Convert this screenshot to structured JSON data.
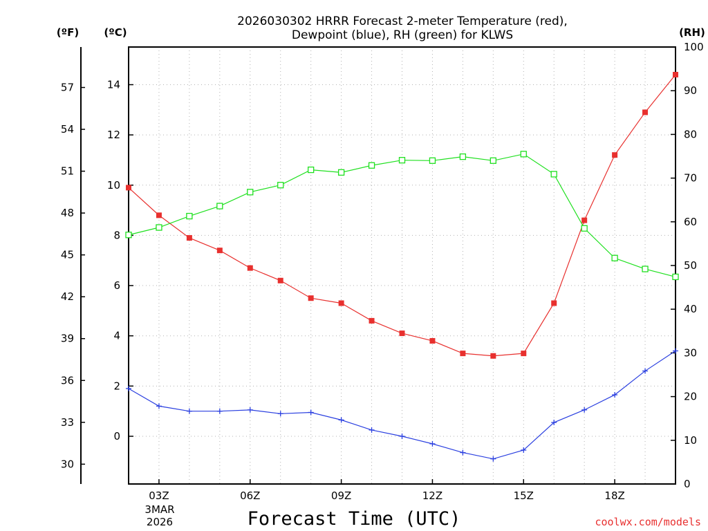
{
  "chart_data": {
    "type": "line",
    "title_line1": "2026030302 HRRR Forecast 2-meter Temperature (red),",
    "title_line2": "Dewpoint (blue), RH (green) for KLWS",
    "xlabel": "Forecast Time (UTC)",
    "units": {
      "fahrenheit": "(ºF)",
      "celsius": "(ºC)",
      "rh": "(RH)"
    },
    "credit": "coolwx.com/models",
    "date_label": {
      "day": "3MAR",
      "year": "2026"
    },
    "x_hours": [
      2,
      3,
      4,
      5,
      6,
      7,
      8,
      9,
      10,
      11,
      12,
      13,
      14,
      15,
      16,
      17,
      18,
      19,
      20
    ],
    "x_range": [
      2,
      20
    ],
    "x_ticks": [
      {
        "hour": 3,
        "label": "03Z"
      },
      {
        "hour": 6,
        "label": "06Z"
      },
      {
        "hour": 9,
        "label": "09Z"
      },
      {
        "hour": 12,
        "label": "12Z"
      },
      {
        "hour": 15,
        "label": "15Z"
      },
      {
        "hour": 18,
        "label": "18Z"
      }
    ],
    "celsius_axis": {
      "range": [
        -1.9,
        15.5
      ],
      "ticks": [
        "0",
        "2",
        "4",
        "6",
        "8",
        "10",
        "12",
        "14"
      ]
    },
    "fahrenheit_axis": {
      "ticks": [
        "30",
        "33",
        "36",
        "39",
        "42",
        "45",
        "48",
        "51",
        "54",
        "57"
      ]
    },
    "rh_axis": {
      "range": [
        0,
        100
      ],
      "ticks": [
        "0",
        "10",
        "20",
        "30",
        "40",
        "50",
        "60",
        "70",
        "80",
        "90",
        "100"
      ]
    },
    "series": [
      {
        "name": "Temperature",
        "unit": "C",
        "color": "#e8302e",
        "marker": "filled-square",
        "values": [
          9.9,
          8.8,
          7.9,
          7.4,
          6.7,
          6.2,
          5.5,
          5.3,
          4.6,
          4.1,
          3.8,
          3.3,
          3.2,
          3.3,
          5.3,
          8.6,
          11.2,
          12.9,
          14.4
        ]
      },
      {
        "name": "Dewpoint",
        "unit": "C",
        "color": "#2a3fe0",
        "marker": "plus",
        "values": [
          1.9,
          1.2,
          1.0,
          1.0,
          1.05,
          0.9,
          0.95,
          0.65,
          0.25,
          0.0,
          -0.3,
          -0.65,
          -0.9,
          -0.55,
          0.55,
          1.05,
          1.65,
          2.6,
          3.4
        ]
      },
      {
        "name": "RH",
        "unit": "%",
        "color": "#1ee01e",
        "marker": "open-square",
        "values": [
          57,
          58.7,
          61.3,
          63.6,
          66.8,
          68.4,
          71.9,
          71.3,
          72.9,
          74.1,
          74.0,
          74.9,
          74.0,
          75.5,
          70.9,
          58.5,
          51.7,
          49.2,
          47.4
        ]
      }
    ]
  }
}
